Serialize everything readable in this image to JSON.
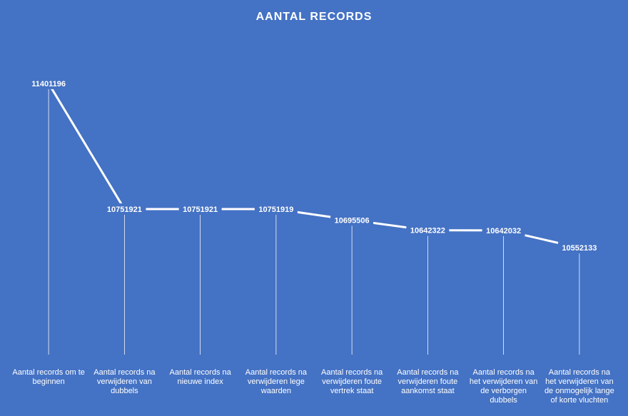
{
  "chart_data": {
    "type": "line",
    "title": "AANTAL  RECORDS",
    "categories": [
      "Aantal records om te beginnen",
      "Aantal records na verwijderen van dubbels",
      "Aantal records na nieuwe index",
      "Aantal records na verwijderen lege waarden",
      "Aantal records na verwijderen foute vertrek staat",
      "Aantal records na verwijderen foute aankomst staat",
      "Aantal records na het verwijderen van de verborgen dubbels",
      "Aantal records na het verwijderen van de onmogelijk lange of korte vluchten"
    ],
    "values": [
      11401196,
      10751921,
      10751921,
      10751919,
      10695506,
      10642322,
      10642032,
      10552133
    ],
    "color": "#ffffff",
    "ylim": [
      10000000,
      11600000
    ]
  }
}
